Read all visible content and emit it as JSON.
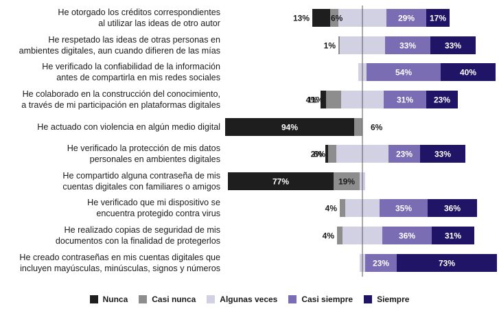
{
  "chart_data": {
    "type": "bar",
    "orientation": "horizontal",
    "stacked": "diverging",
    "title": "",
    "categories": [
      [
        "He otorgado los créditos correspondientes",
        "al utilizar las ideas de otro autor"
      ],
      [
        "He respetado las ideas de otras personas en",
        "ambientes digitales, aun cuando difieren de las mías"
      ],
      [
        "He verificado la confiabilidad de la información",
        "antes de compartirla en mis redes sociales"
      ],
      [
        "He colaborado en la construcción del conocimiento,",
        "a través de mi participación en plataformas digitales"
      ],
      [
        "He actuado con violencia en algún medio digital"
      ],
      [
        "He verificado la protección de mis datos",
        "personales en ambientes digitales"
      ],
      [
        "He compartido alguna contraseña de mis",
        "cuentas digitales con familiares o amigos"
      ],
      [
        "He verificado que mi dispositivo se",
        "encuentra protegido contra virus"
      ],
      [
        "He realizado copias de seguridad de mis",
        "documentos con la finalidad de protegerlos"
      ],
      [
        "He creado contraseñas en mis cuentas digitales que",
        "incluyen mayúsculas, minúsculas, signos y números"
      ]
    ],
    "series": [
      {
        "name": "Nunca",
        "color": "#1e1e1e",
        "label_color": "#ffffff",
        "values": [
          13,
          0,
          0,
          4,
          94,
          2,
          77,
          0,
          0,
          0
        ],
        "labels": [
          "13%",
          "",
          "",
          "4%",
          "94%",
          "2%",
          "77%",
          "",
          "",
          ""
        ]
      },
      {
        "name": "Casi nunca",
        "color": "#8d8d8d",
        "label_color": "#1a1a1a",
        "values": [
          6,
          1,
          0,
          11,
          6,
          6,
          19,
          4,
          4,
          0
        ],
        "labels": [
          "6%",
          "1%",
          "",
          "11%",
          "6%",
          "6%",
          "19%",
          "4%",
          "4%",
          ""
        ]
      },
      {
        "name": "Algunas veces",
        "color": "#d2d0e3",
        "label_color": "#1a1a1a",
        "values": [
          35,
          33,
          6,
          31,
          0,
          38,
          4,
          25,
          29,
          4
        ],
        "labels": [
          "",
          "",
          "",
          "",
          "",
          "",
          "",
          "",
          "",
          ""
        ]
      },
      {
        "name": "Casi siempre",
        "color": "#7b6db3",
        "label_color": "#ffffff",
        "values": [
          29,
          33,
          54,
          31,
          0,
          23,
          0,
          35,
          36,
          23
        ],
        "labels": [
          "29%",
          "33%",
          "54%",
          "31%",
          "",
          "23%",
          "",
          "35%",
          "36%",
          "23%"
        ]
      },
      {
        "name": "Siempre",
        "color": "#1f1466",
        "label_color": "#ffffff",
        "values": [
          17,
          33,
          40,
          23,
          0,
          33,
          0,
          36,
          31,
          73
        ],
        "labels": [
          "17%",
          "33%",
          "40%",
          "23%",
          "",
          "33%",
          "",
          "36%",
          "31%",
          "73%"
        ]
      }
    ],
    "legend": [
      "Nunca",
      "Casi nunca",
      "Algunas veces",
      "Casi siempre",
      "Siempre"
    ],
    "legend_position": "bottom",
    "axis_line_color": "#555555"
  }
}
